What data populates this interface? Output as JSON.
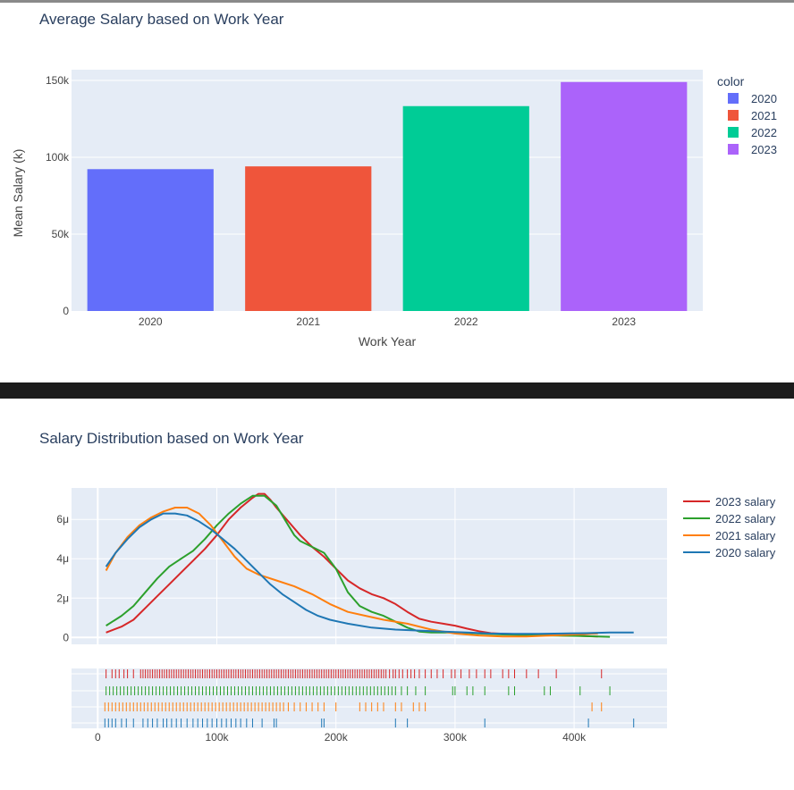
{
  "chart_data": [
    {
      "type": "bar",
      "title": "Average Salary based on Work Year",
      "xlabel": "Work Year",
      "ylabel": "Mean Salary (k)",
      "categories": [
        "2020",
        "2021",
        "2022",
        "2023"
      ],
      "values": [
        92300,
        94100,
        133300,
        149000
      ],
      "ylim": [
        0,
        157000
      ],
      "yticks": [
        0,
        50000,
        100000,
        150000
      ],
      "ytick_labels": [
        "0",
        "50k",
        "100k",
        "150k"
      ],
      "colors": [
        "#636efa",
        "#ef553b",
        "#00cc96",
        "#ab63fa"
      ],
      "legend_title": "color",
      "legend_labels": [
        "2020",
        "2021",
        "2022",
        "2023"
      ],
      "legend_position": "top-right",
      "grid": true
    },
    {
      "type": "line",
      "title": "Salary Distribution based on Work Year",
      "xlim": [
        -22000,
        478000
      ],
      "ylim": [
        -3.5e-07,
        7.6e-06
      ],
      "xticks": [
        0,
        100000,
        200000,
        300000,
        400000
      ],
      "xtick_labels": [
        "0",
        "100k",
        "200k",
        "300k",
        "400k"
      ],
      "yticks": [
        0,
        2e-06,
        4e-06,
        6e-06
      ],
      "ytick_labels": [
        "0",
        "2μ",
        "4μ",
        "6μ"
      ],
      "legend_position": "top-right",
      "grid": true,
      "series": [
        {
          "name": "2023 salary",
          "color": "#d62728",
          "x": [
            7000,
            20000,
            30000,
            40000,
            50000,
            60000,
            70000,
            80000,
            90000,
            100000,
            110000,
            120000,
            130000,
            135000,
            140000,
            145000,
            150000,
            160000,
            170000,
            180000,
            190000,
            200000,
            210000,
            220000,
            230000,
            240000,
            250000,
            260000,
            270000,
            280000,
            290000,
            300000,
            310000,
            320000,
            330000,
            340000,
            350000,
            360000,
            370000,
            380000,
            390000,
            400000,
            410000,
            420000
          ],
          "y": [
            2.5e-07,
            5.5e-07,
            9e-07,
            1.5e-06,
            2.1e-06,
            2.7e-06,
            3.3e-06,
            3.9e-06,
            4.5e-06,
            5.2e-06,
            6e-06,
            6.6e-06,
            7.1e-06,
            7.3e-06,
            7.3e-06,
            7e-06,
            6.6e-06,
            5.9e-06,
            5.2e-06,
            4.6e-06,
            4.1e-06,
            3.5e-06,
            2.9e-06,
            2.5e-06,
            2.2e-06,
            2e-06,
            1.7e-06,
            1.3e-06,
            9.5e-07,
            8e-07,
            7e-07,
            6e-07,
            4.5e-07,
            3.2e-07,
            2.2e-07,
            1.9e-07,
            1.7e-07,
            1.5e-07,
            1.3e-07,
            1.2e-07,
            1e-07,
            9e-08,
            7e-08,
            5e-08
          ]
        },
        {
          "name": "2022 salary",
          "color": "#2ca02c",
          "x": [
            7000,
            20000,
            30000,
            40000,
            50000,
            60000,
            70000,
            80000,
            90000,
            100000,
            110000,
            120000,
            130000,
            140000,
            150000,
            160000,
            165000,
            170000,
            180000,
            190000,
            200000,
            210000,
            220000,
            230000,
            240000,
            250000,
            260000,
            270000,
            280000,
            290000,
            300000,
            320000,
            340000,
            360000,
            380000,
            400000,
            420000,
            430000
          ],
          "y": [
            6e-07,
            1.1e-06,
            1.6e-06,
            2.3e-06,
            3e-06,
            3.6e-06,
            4e-06,
            4.4e-06,
            5e-06,
            5.7e-06,
            6.3e-06,
            6.8e-06,
            7.2e-06,
            7.2e-06,
            6.7e-06,
            5.7e-06,
            5.2e-06,
            4.9e-06,
            4.6e-06,
            4.3e-06,
            3.5e-06,
            2.3e-06,
            1.6e-06,
            1.3e-06,
            1.1e-06,
            8e-07,
            5e-07,
            3e-07,
            2.5e-07,
            2.5e-07,
            2.5e-07,
            2e-07,
            1.5e-07,
            1.2e-07,
            1e-07,
            8e-08,
            5e-08,
            3e-08
          ]
        },
        {
          "name": "2021 salary",
          "color": "#ff7f0e",
          "x": [
            7000,
            15000,
            25000,
            35000,
            45000,
            55000,
            65000,
            75000,
            85000,
            95000,
            105000,
            115000,
            125000,
            135000,
            150000,
            165000,
            180000,
            195000,
            210000,
            225000,
            240000,
            260000,
            280000,
            300000,
            320000,
            340000,
            360000,
            380000,
            400000,
            420000
          ],
          "y": [
            3.4e-06,
            4.3e-06,
            5.1e-06,
            5.7e-06,
            6.1e-06,
            6.4e-06,
            6.6e-06,
            6.6e-06,
            6.3e-06,
            5.7e-06,
            4.9e-06,
            4.1e-06,
            3.5e-06,
            3.2e-06,
            2.9e-06,
            2.6e-06,
            2.2e-06,
            1.7e-06,
            1.3e-06,
            1.1e-06,
            9e-07,
            7e-07,
            4e-07,
            2e-07,
            1e-07,
            5e-08,
            5e-08,
            1e-07,
            1.5e-07,
            2e-07
          ]
        },
        {
          "name": "2020 salary",
          "color": "#1f77b4",
          "x": [
            7000,
            15000,
            25000,
            35000,
            45000,
            55000,
            65000,
            75000,
            85000,
            95000,
            105000,
            115000,
            125000,
            135000,
            145000,
            155000,
            165000,
            175000,
            185000,
            195000,
            210000,
            230000,
            250000,
            270000,
            290000,
            310000,
            330000,
            350000,
            370000,
            390000,
            410000,
            430000,
            450000
          ],
          "y": [
            3.6e-06,
            4.3e-06,
            5e-06,
            5.6e-06,
            6e-06,
            6.3e-06,
            6.3e-06,
            6.2e-06,
            5.9e-06,
            5.5e-06,
            5e-06,
            4.5e-06,
            3.9e-06,
            3.3e-06,
            2.7e-06,
            2.2e-06,
            1.8e-06,
            1.4e-06,
            1.1e-06,
            9e-07,
            7e-07,
            5e-07,
            4e-07,
            3.5e-07,
            3e-07,
            2.5e-07,
            2e-07,
            1.8e-07,
            1.8e-07,
            2e-07,
            2.2e-07,
            2.5e-07,
            2.5e-07
          ]
        }
      ],
      "rug": [
        {
          "name": "2023 salary",
          "color": "#d62728",
          "values": [
            7000,
            12000,
            15000,
            18000,
            22000,
            25000,
            30000,
            36000,
            38000,
            40000,
            42000,
            44000,
            46000,
            48000,
            50000,
            52000,
            54000,
            56000,
            58000,
            60000,
            62000,
            64000,
            66000,
            68000,
            70000,
            72000,
            74000,
            76000,
            78000,
            80000,
            82000,
            84000,
            86000,
            88000,
            90000,
            92000,
            94000,
            96000,
            98000,
            100000,
            102000,
            104000,
            106000,
            108000,
            110000,
            112000,
            114000,
            116000,
            118000,
            120000,
            122000,
            124000,
            126000,
            128000,
            130000,
            132000,
            134000,
            136000,
            138000,
            140000,
            142000,
            144000,
            146000,
            148000,
            150000,
            152000,
            154000,
            156000,
            158000,
            160000,
            162000,
            164000,
            166000,
            168000,
            170000,
            172000,
            174000,
            176000,
            178000,
            180000,
            182000,
            184000,
            186000,
            188000,
            190000,
            192000,
            194000,
            196000,
            198000,
            200000,
            202000,
            204000,
            206000,
            208000,
            210000,
            212000,
            214000,
            216000,
            218000,
            220000,
            222000,
            224000,
            226000,
            228000,
            230000,
            232000,
            234000,
            236000,
            238000,
            240000,
            242000,
            245000,
            248000,
            250000,
            253000,
            256000,
            260000,
            263000,
            266000,
            270000,
            275000,
            280000,
            285000,
            290000,
            297000,
            300000,
            305000,
            312000,
            318000,
            325000,
            330000,
            340000,
            345000,
            350000,
            360000,
            370000,
            385000,
            423000
          ]
        },
        {
          "name": "2022 salary",
          "color": "#2ca02c",
          "values": [
            7000,
            10000,
            13000,
            16000,
            19000,
            22000,
            25000,
            28000,
            31000,
            34000,
            37000,
            40000,
            43000,
            46000,
            49000,
            52000,
            55000,
            58000,
            61000,
            64000,
            67000,
            70000,
            73000,
            76000,
            79000,
            82000,
            85000,
            88000,
            91000,
            94000,
            97000,
            100000,
            103000,
            106000,
            109000,
            112000,
            115000,
            118000,
            121000,
            124000,
            127000,
            130000,
            133000,
            136000,
            139000,
            142000,
            145000,
            148000,
            151000,
            154000,
            157000,
            160000,
            163000,
            166000,
            169000,
            172000,
            175000,
            178000,
            181000,
            184000,
            187000,
            190000,
            193000,
            196000,
            199000,
            202000,
            205000,
            208000,
            211000,
            214000,
            217000,
            220000,
            223000,
            226000,
            229000,
            232000,
            235000,
            238000,
            241000,
            244000,
            247000,
            250000,
            255000,
            260000,
            267000,
            275000,
            298000,
            300000,
            310000,
            315000,
            325000,
            345000,
            350000,
            375000,
            380000,
            405000,
            430000
          ]
        },
        {
          "name": "2021 salary",
          "color": "#ff7f0e",
          "values": [
            6000,
            9000,
            12000,
            15000,
            18000,
            21000,
            24000,
            27000,
            30000,
            33000,
            36000,
            39000,
            42000,
            45000,
            48000,
            51000,
            54000,
            57000,
            60000,
            63000,
            66000,
            69000,
            72000,
            75000,
            78000,
            81000,
            84000,
            87000,
            90000,
            93000,
            96000,
            99000,
            102000,
            105000,
            108000,
            111000,
            114000,
            117000,
            120000,
            123000,
            126000,
            129000,
            132000,
            135000,
            138000,
            141000,
            144000,
            147000,
            150000,
            153000,
            156000,
            160000,
            165000,
            170000,
            175000,
            180000,
            185000,
            190000,
            200000,
            220000,
            225000,
            230000,
            235000,
            240000,
            250000,
            255000,
            265000,
            270000,
            275000,
            415000,
            423000
          ]
        },
        {
          "name": "2020 salary",
          "color": "#1f77b4",
          "values": [
            6000,
            9000,
            12000,
            15000,
            20000,
            24000,
            30000,
            38000,
            42000,
            46000,
            50000,
            55000,
            58000,
            62000,
            66000,
            70000,
            75000,
            80000,
            84000,
            88000,
            92000,
            96000,
            100000,
            104000,
            108000,
            112000,
            116000,
            120000,
            125000,
            130000,
            138000,
            148000,
            150000,
            188000,
            190000,
            250000,
            260000,
            325000,
            412000,
            450000
          ]
        }
      ]
    }
  ]
}
